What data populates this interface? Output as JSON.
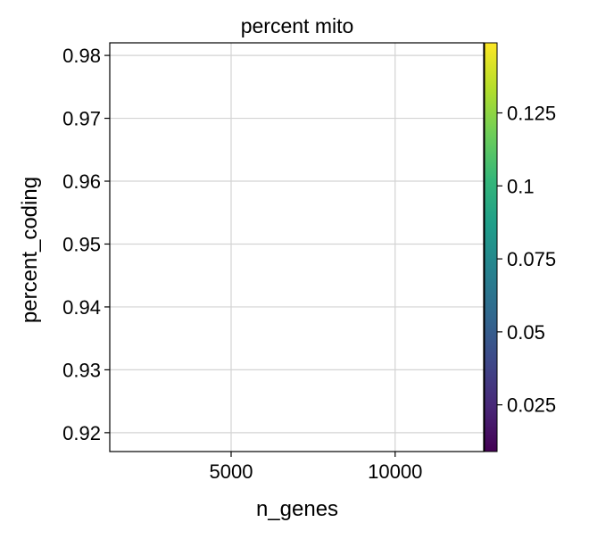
{
  "chart_data": {
    "type": "scatter",
    "title": "percent mito",
    "xlabel": "n_genes",
    "ylabel": "percent_coding",
    "xlim": [
      1300,
      12700
    ],
    "ylim": [
      0.917,
      0.982
    ],
    "xticks": [
      5000,
      10000
    ],
    "xtick_labels": [
      "5000",
      "10000"
    ],
    "yticks": [
      0.92,
      0.93,
      0.94,
      0.95,
      0.96,
      0.97,
      0.98
    ],
    "ytick_labels": [
      "0.92",
      "0.93",
      "0.94",
      "0.95",
      "0.96",
      "0.97",
      "0.98"
    ],
    "grid": true,
    "colorbar": {
      "label": "",
      "colormap": "viridis",
      "range": [
        0.009,
        0.149
      ],
      "ticks": [
        0.025,
        0.05,
        0.075,
        0.1,
        0.125
      ],
      "tick_labels": [
        "0.025",
        "0.05",
        "0.075",
        "0.1",
        "0.125"
      ]
    },
    "colormap_stops": [
      "#440154",
      "#482878",
      "#3e4989",
      "#31688e",
      "#26828e",
      "#1f9e89",
      "#35b779",
      "#6ece58",
      "#b5de2b",
      "#fde725"
    ],
    "points": []
  }
}
